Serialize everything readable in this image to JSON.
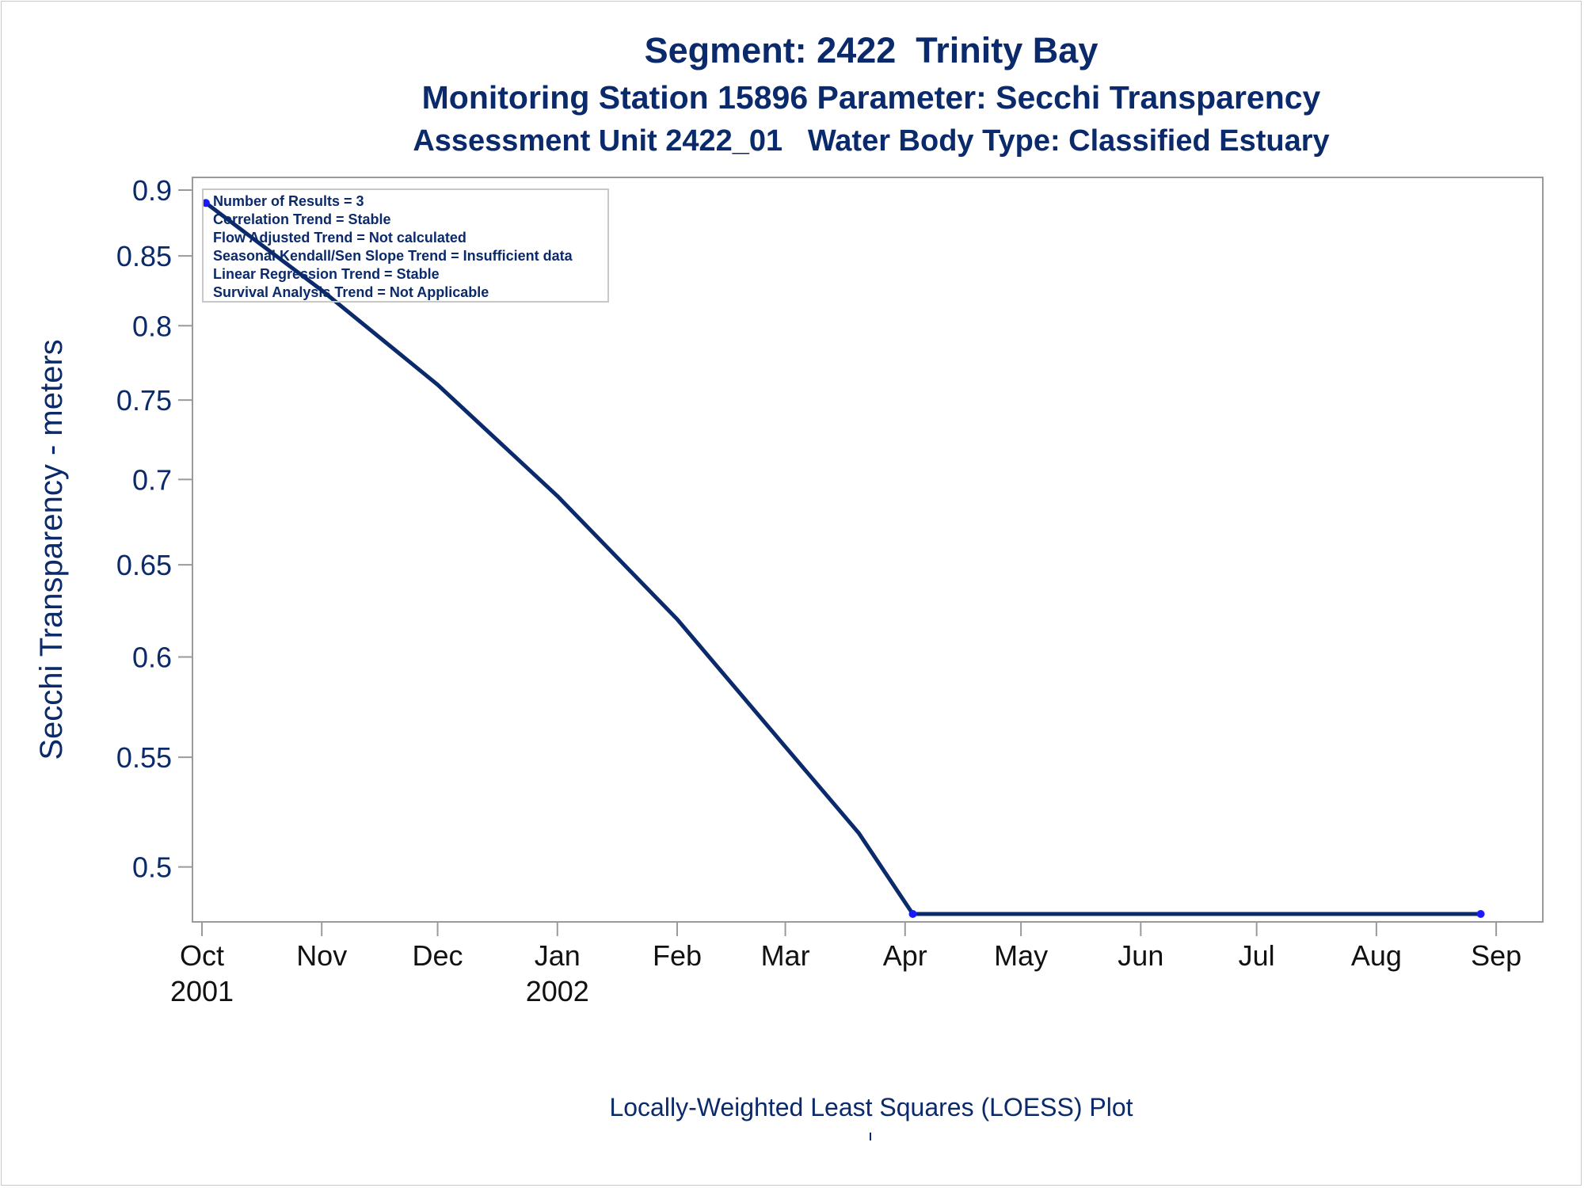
{
  "titles": {
    "line1": "Segment: 2422  Trinity Bay",
    "line2": "Monitoring Station 15896 Parameter: Secchi Transparency",
    "line3": "Assessment Unit 2422_01   Water Body Type: Classified Estuary"
  },
  "footnote": "Locally-Weighted Least Squares (LOESS) Plot",
  "stats_box": [
    "Number of Results = 3",
    "Correlation Trend = Stable",
    "Flow Adjusted Trend = Not calculated",
    "Seasonal Kendall/Sen Slope Trend = Insufficient data",
    "Linear Regression Trend = Stable",
    "Survival Analysis Trend = Not Applicable"
  ],
  "colors": {
    "text": "#0b2a6b",
    "line": "#0b2a6b",
    "marker": "#1a1aff",
    "axis": "#9a9a9a"
  },
  "chart_data": {
    "type": "line",
    "ylabel": "Secchi Transparency - meters",
    "xlabel": "",
    "ylim": [
      0.48,
      0.9
    ],
    "y_scale": "log",
    "y_ticks": [
      0.9,
      0.85,
      0.8,
      0.75,
      0.7,
      0.65,
      0.6,
      0.55,
      0.5
    ],
    "y_tick_labels": [
      "0.9",
      "0.85",
      "0.8",
      "0.75",
      "0.7",
      "0.65",
      "0.6",
      "0.55",
      "0.5"
    ],
    "xlim": [
      "2001-10-01",
      "2002-09-10"
    ],
    "x_ticks": [
      {
        "date": "2001-10-01",
        "label": "Oct",
        "year": "2001"
      },
      {
        "date": "2001-11-01",
        "label": "Nov",
        "year": ""
      },
      {
        "date": "2001-12-01",
        "label": "Dec",
        "year": ""
      },
      {
        "date": "2002-01-01",
        "label": "Jan",
        "year": "2002"
      },
      {
        "date": "2002-02-01",
        "label": "Feb",
        "year": ""
      },
      {
        "date": "2002-03-01",
        "label": "Mar",
        "year": ""
      },
      {
        "date": "2002-04-01",
        "label": "Apr",
        "year": ""
      },
      {
        "date": "2002-05-01",
        "label": "May",
        "year": ""
      },
      {
        "date": "2002-06-01",
        "label": "Jun",
        "year": ""
      },
      {
        "date": "2002-07-01",
        "label": "Jul",
        "year": ""
      },
      {
        "date": "2002-08-01",
        "label": "Aug",
        "year": ""
      },
      {
        "date": "2002-09-01",
        "label": "Sep",
        "year": ""
      }
    ],
    "points": [
      {
        "x": "2001-10-02",
        "y": 0.89
      },
      {
        "x": "2002-04-03",
        "y": 0.48
      },
      {
        "x": "2002-08-28",
        "y": 0.48
      }
    ],
    "loess": [
      {
        "x": "2001-10-02",
        "y": 0.89
      },
      {
        "x": "2001-11-01",
        "y": 0.825
      },
      {
        "x": "2001-12-01",
        "y": 0.76
      },
      {
        "x": "2002-01-01",
        "y": 0.69
      },
      {
        "x": "2002-02-01",
        "y": 0.62
      },
      {
        "x": "2002-03-01",
        "y": 0.555
      },
      {
        "x": "2002-03-20",
        "y": 0.515
      },
      {
        "x": "2002-04-03",
        "y": 0.48
      },
      {
        "x": "2002-08-28",
        "y": 0.48
      }
    ],
    "grid": false,
    "legend": "none"
  }
}
